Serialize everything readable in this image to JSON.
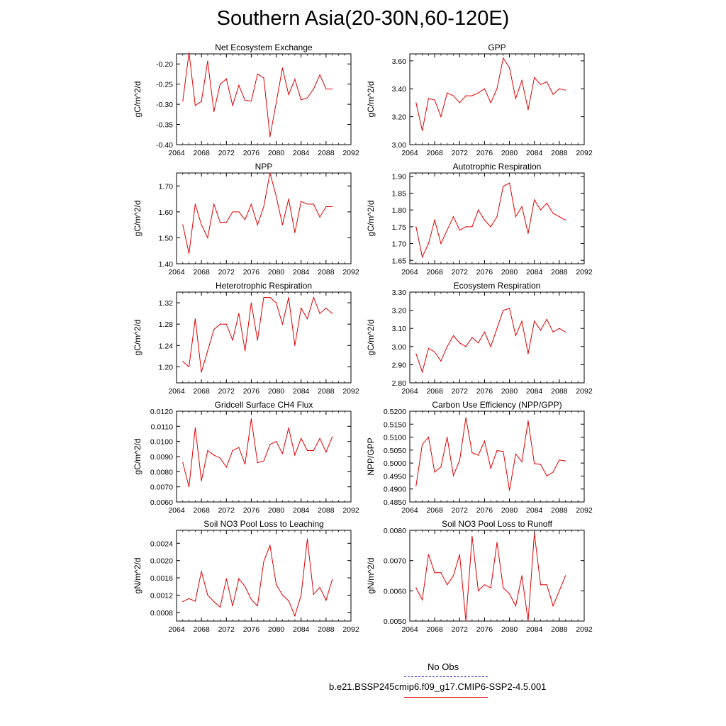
{
  "title": "Southern Asia(20-30N,60-120E)",
  "legend": {
    "obs_label": "No Obs",
    "obs_color": "#3333cc",
    "model_label": "b.e21.BSSP245cmip6.f09_g17.CMIP6-SSP2-4.5.001",
    "model_color": "#e00000"
  },
  "chart_data": [
    {
      "type": "line",
      "title": "Net Ecosystem Exchange",
      "xlabel": "",
      "ylabel": "gC/m^2/d",
      "xlim": [
        2064,
        2092
      ],
      "ylim": [
        -0.4,
        -0.175
      ],
      "xticks": [
        "2064",
        "2068",
        "2072",
        "2076",
        "2080",
        "2084",
        "2088",
        "2092"
      ],
      "yticks": [
        "-0.40",
        "-0.35",
        "-0.30",
        "-0.25",
        "-0.20"
      ],
      "yticks_values": [
        -0.4,
        -0.35,
        -0.3,
        -0.25,
        -0.2
      ],
      "x": [
        2065,
        2066,
        2067,
        2068,
        2069,
        2070,
        2071,
        2072,
        2073,
        2074,
        2075,
        2076,
        2077,
        2078,
        2079,
        2080,
        2081,
        2082,
        2083,
        2084,
        2085,
        2086,
        2087,
        2088,
        2089
      ],
      "values": [
        -0.292,
        -0.172,
        -0.303,
        -0.293,
        -0.193,
        -0.318,
        -0.25,
        -0.237,
        -0.303,
        -0.253,
        -0.29,
        -0.292,
        -0.225,
        -0.235,
        -0.38,
        -0.296,
        -0.21,
        -0.276,
        -0.238,
        -0.289,
        -0.284,
        -0.262,
        -0.227,
        -0.262,
        -0.262
      ]
    },
    {
      "type": "line",
      "title": "GPP",
      "xlabel": "",
      "ylabel": "gC/m^2/d",
      "xlim": [
        2064,
        2092
      ],
      "ylim": [
        3.0,
        3.65
      ],
      "xticks": [
        "2064",
        "2068",
        "2072",
        "2076",
        "2080",
        "2084",
        "2088",
        "2092"
      ],
      "yticks": [
        "3.00",
        "3.20",
        "3.40",
        "3.60"
      ],
      "yticks_values": [
        3.0,
        3.2,
        3.4,
        3.6
      ],
      "x": [
        2065,
        2066,
        2067,
        2068,
        2069,
        2070,
        2071,
        2072,
        2073,
        2074,
        2075,
        2076,
        2077,
        2078,
        2079,
        2080,
        2081,
        2082,
        2083,
        2084,
        2085,
        2086,
        2087,
        2088,
        2089
      ],
      "values": [
        3.3,
        3.1,
        3.33,
        3.32,
        3.2,
        3.37,
        3.35,
        3.3,
        3.35,
        3.35,
        3.37,
        3.4,
        3.3,
        3.4,
        3.62,
        3.55,
        3.33,
        3.46,
        3.25,
        3.48,
        3.43,
        3.45,
        3.36,
        3.4,
        3.39
      ]
    },
    {
      "type": "line",
      "title": "NPP",
      "xlabel": "",
      "ylabel": "gC/m^2/d",
      "xlim": [
        2064,
        2092
      ],
      "ylim": [
        1.4,
        1.75
      ],
      "xticks": [
        "2064",
        "2068",
        "2072",
        "2076",
        "2080",
        "2084",
        "2088",
        "2092"
      ],
      "yticks": [
        "1.40",
        "1.50",
        "1.60",
        "1.70"
      ],
      "yticks_values": [
        1.4,
        1.5,
        1.6,
        1.7
      ],
      "x": [
        2065,
        2066,
        2067,
        2068,
        2069,
        2070,
        2071,
        2072,
        2073,
        2074,
        2075,
        2076,
        2077,
        2078,
        2079,
        2080,
        2081,
        2082,
        2083,
        2084,
        2085,
        2086,
        2087,
        2088,
        2089
      ],
      "values": [
        1.55,
        1.44,
        1.63,
        1.55,
        1.5,
        1.63,
        1.56,
        1.56,
        1.6,
        1.6,
        1.57,
        1.63,
        1.55,
        1.62,
        1.75,
        1.66,
        1.55,
        1.65,
        1.52,
        1.64,
        1.63,
        1.63,
        1.58,
        1.62,
        1.62
      ]
    },
    {
      "type": "line",
      "title": "Autotrophic Respiration",
      "xlabel": "",
      "ylabel": "gC/m^2/d",
      "xlim": [
        2064,
        2092
      ],
      "ylim": [
        1.64,
        1.91
      ],
      "xticks": [
        "2064",
        "2068",
        "2072",
        "2076",
        "2080",
        "2084",
        "2088",
        "2092"
      ],
      "yticks": [
        "1.65",
        "1.70",
        "1.75",
        "1.80",
        "1.85",
        "1.90"
      ],
      "yticks_values": [
        1.65,
        1.7,
        1.75,
        1.8,
        1.85,
        1.9
      ],
      "x": [
        2065,
        2066,
        2067,
        2068,
        2069,
        2070,
        2071,
        2072,
        2073,
        2074,
        2075,
        2076,
        2077,
        2078,
        2079,
        2080,
        2081,
        2082,
        2083,
        2084,
        2085,
        2086,
        2087,
        2088,
        2089
      ],
      "values": [
        1.75,
        1.66,
        1.7,
        1.77,
        1.7,
        1.74,
        1.78,
        1.74,
        1.75,
        1.75,
        1.8,
        1.77,
        1.75,
        1.78,
        1.87,
        1.88,
        1.78,
        1.81,
        1.73,
        1.83,
        1.8,
        1.82,
        1.79,
        1.78,
        1.77
      ]
    },
    {
      "type": "line",
      "title": "Heterotrophic Respiration",
      "xlabel": "",
      "ylabel": "gC/m^2/d",
      "xlim": [
        2064,
        2092
      ],
      "ylim": [
        1.17,
        1.34
      ],
      "xticks": [
        "2064",
        "2068",
        "2072",
        "2076",
        "2080",
        "2084",
        "2088",
        "2092"
      ],
      "yticks": [
        "1.20",
        "1.24",
        "1.28",
        "1.32"
      ],
      "yticks_values": [
        1.2,
        1.24,
        1.28,
        1.32
      ],
      "x": [
        2065,
        2066,
        2067,
        2068,
        2069,
        2070,
        2071,
        2072,
        2073,
        2074,
        2075,
        2076,
        2077,
        2078,
        2079,
        2080,
        2081,
        2082,
        2083,
        2084,
        2085,
        2086,
        2087,
        2088,
        2089
      ],
      "values": [
        1.21,
        1.2,
        1.29,
        1.19,
        1.23,
        1.27,
        1.28,
        1.28,
        1.25,
        1.3,
        1.23,
        1.32,
        1.25,
        1.33,
        1.33,
        1.32,
        1.28,
        1.33,
        1.24,
        1.31,
        1.29,
        1.33,
        1.3,
        1.31,
        1.3
      ]
    },
    {
      "type": "line",
      "title": "Ecosystem Respiration",
      "xlabel": "",
      "ylabel": "gC/m^2/d",
      "xlim": [
        2064,
        2092
      ],
      "ylim": [
        2.8,
        3.3
      ],
      "xticks": [
        "2064",
        "2068",
        "2072",
        "2076",
        "2080",
        "2084",
        "2088",
        "2092"
      ],
      "yticks": [
        "2.80",
        "2.90",
        "3.00",
        "3.10",
        "3.20",
        "3.30"
      ],
      "yticks_values": [
        2.8,
        2.9,
        3.0,
        3.1,
        3.2,
        3.3
      ],
      "x": [
        2065,
        2066,
        2067,
        2068,
        2069,
        2070,
        2071,
        2072,
        2073,
        2074,
        2075,
        2076,
        2077,
        2078,
        2079,
        2080,
        2081,
        2082,
        2083,
        2084,
        2085,
        2086,
        2087,
        2088,
        2089
      ],
      "values": [
        2.96,
        2.86,
        2.99,
        2.97,
        2.92,
        3.0,
        3.06,
        3.02,
        3.0,
        3.05,
        3.02,
        3.08,
        3.0,
        3.1,
        3.2,
        3.21,
        3.06,
        3.14,
        2.96,
        3.14,
        3.09,
        3.15,
        3.08,
        3.1,
        3.08
      ]
    },
    {
      "type": "line",
      "title": "Gridcell Surface CH4 Flux",
      "xlabel": "",
      "ylabel": "gC/m^2/d",
      "xlim": [
        2064,
        2092
      ],
      "ylim": [
        0.006,
        0.012
      ],
      "xticks": [
        "2064",
        "2068",
        "2072",
        "2076",
        "2080",
        "2084",
        "2088",
        "2092"
      ],
      "yticks": [
        "0.0060",
        "0.0070",
        "0.0080",
        "0.0090",
        "0.0100",
        "0.0110",
        "0.0120"
      ],
      "yticks_values": [
        0.006,
        0.007,
        0.008,
        0.009,
        0.01,
        0.011,
        0.012
      ],
      "x": [
        2065,
        2066,
        2067,
        2068,
        2069,
        2070,
        2071,
        2072,
        2073,
        2074,
        2075,
        2076,
        2077,
        2078,
        2079,
        2080,
        2081,
        2082,
        2083,
        2084,
        2085,
        2086,
        2087,
        2088,
        2089
      ],
      "values": [
        0.0086,
        0.007,
        0.0109,
        0.0074,
        0.0094,
        0.0091,
        0.0089,
        0.0083,
        0.0094,
        0.0096,
        0.0085,
        0.0115,
        0.0086,
        0.0087,
        0.0098,
        0.01,
        0.0092,
        0.0109,
        0.0091,
        0.0102,
        0.0094,
        0.0094,
        0.0102,
        0.0093,
        0.0103
      ]
    },
    {
      "type": "line",
      "title": "Carbon Use Efficiency (NPP/GPP)",
      "xlabel": "",
      "ylabel": "NPP/GPP",
      "xlim": [
        2064,
        2092
      ],
      "ylim": [
        0.485,
        0.52
      ],
      "xticks": [
        "2064",
        "2068",
        "2072",
        "2076",
        "2080",
        "2084",
        "2088",
        "2092"
      ],
      "yticks": [
        "0.4850",
        "0.4900",
        "0.4950",
        "0.5000",
        "0.5050",
        "0.5100",
        "0.5150",
        "0.5200"
      ],
      "yticks_values": [
        0.485,
        0.49,
        0.495,
        0.5,
        0.505,
        0.51,
        0.515,
        0.52
      ],
      "x": [
        2065,
        2066,
        2067,
        2068,
        2069,
        2070,
        2071,
        2072,
        2073,
        2074,
        2075,
        2076,
        2077,
        2078,
        2079,
        2080,
        2081,
        2082,
        2083,
        2084,
        2085,
        2086,
        2087,
        2088,
        2089
      ],
      "values": [
        0.4912,
        0.5072,
        0.51,
        0.4965,
        0.4985,
        0.51,
        0.4952,
        0.501,
        0.5175,
        0.504,
        0.503,
        0.5085,
        0.498,
        0.5048,
        0.5045,
        0.4895,
        0.5035,
        0.5005,
        0.5163,
        0.4998,
        0.4995,
        0.495,
        0.4965,
        0.5012,
        0.5008
      ]
    },
    {
      "type": "line",
      "title": "Soil NO3 Pool Loss to Leaching",
      "xlabel": "",
      "ylabel": "gN/m^2/d",
      "xlim": [
        2064,
        2092
      ],
      "ylim": [
        0.0006,
        0.0027
      ],
      "xticks": [
        "2064",
        "2068",
        "2072",
        "2076",
        "2080",
        "2084",
        "2088",
        "2092"
      ],
      "yticks": [
        "0.0008",
        "0.0012",
        "0.0016",
        "0.0020",
        "0.0024"
      ],
      "yticks_values": [
        0.0008,
        0.0012,
        0.0016,
        0.002,
        0.0024
      ],
      "x": [
        2065,
        2066,
        2067,
        2068,
        2069,
        2070,
        2071,
        2072,
        2073,
        2074,
        2075,
        2076,
        2077,
        2078,
        2079,
        2080,
        2081,
        2082,
        2083,
        2084,
        2085,
        2086,
        2087,
        2088,
        2089
      ],
      "values": [
        0.00105,
        0.00112,
        0.00106,
        0.00175,
        0.0012,
        0.00105,
        0.00092,
        0.00158,
        0.00095,
        0.00158,
        0.0014,
        0.0011,
        0.00095,
        0.00198,
        0.00235,
        0.00145,
        0.0012,
        0.00107,
        0.00072,
        0.0012,
        0.0025,
        0.00122,
        0.00138,
        0.00108,
        0.00156
      ]
    },
    {
      "type": "line",
      "title": "Soil NO3 Pool Loss to Runoff",
      "xlabel": "",
      "ylabel": "gN/m^2/d",
      "xlim": [
        2064,
        2092
      ],
      "ylim": [
        0.005,
        0.008
      ],
      "xticks": [
        "2064",
        "2068",
        "2072",
        "2076",
        "2080",
        "2084",
        "2088",
        "2092"
      ],
      "yticks": [
        "0.0050",
        "0.0060",
        "0.0070",
        "0.0080"
      ],
      "yticks_values": [
        0.005,
        0.006,
        0.007,
        0.008
      ],
      "x": [
        2065,
        2066,
        2067,
        2068,
        2069,
        2070,
        2071,
        2072,
        2073,
        2074,
        2075,
        2076,
        2077,
        2078,
        2079,
        2080,
        2081,
        2082,
        2083,
        2084,
        2085,
        2086,
        2087,
        2088,
        2089
      ],
      "values": [
        0.0061,
        0.0057,
        0.0072,
        0.0066,
        0.0066,
        0.0062,
        0.0065,
        0.0072,
        0.005,
        0.0078,
        0.006,
        0.0062,
        0.0061,
        0.0076,
        0.0061,
        0.0059,
        0.0055,
        0.0065,
        0.005,
        0.0079,
        0.0062,
        0.0062,
        0.0055,
        0.006,
        0.0065
      ]
    }
  ]
}
